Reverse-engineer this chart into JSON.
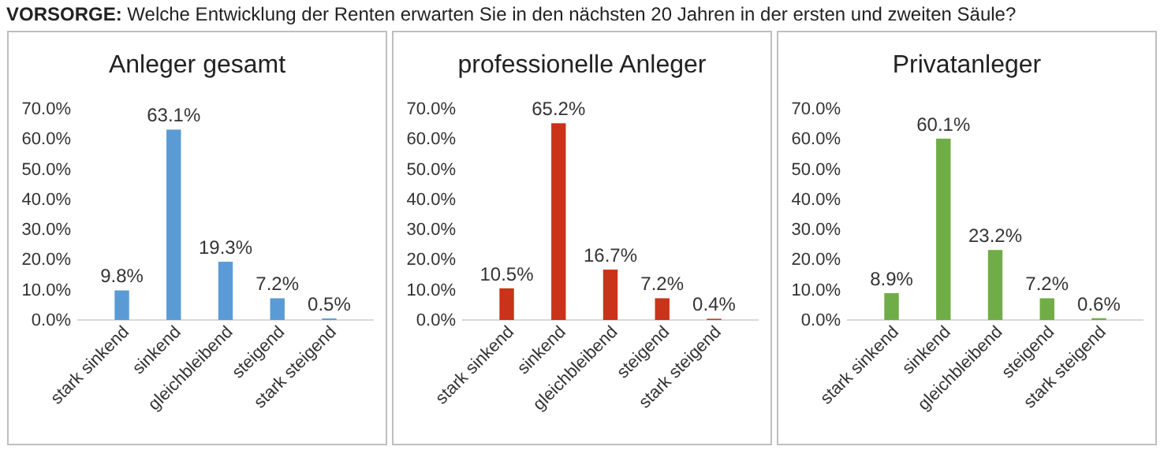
{
  "chart_data": [
    {
      "type": "other",
      "title": "VORSORGE: Welche Entwicklung der Renten erwarten Sie in den nächsten 20 Jahren in der ersten und zweiten Säule?"
    },
    {
      "type": "bar",
      "title": "Anleger gesamt",
      "categories": [
        "stark sinkend",
        "sinkend",
        "gleichbleibend",
        "steigend",
        "stark steigend"
      ],
      "values": [
        9.8,
        63.1,
        19.3,
        7.2,
        0.5
      ],
      "value_labels": [
        "9.8%",
        "63.1%",
        "19.3%",
        "7.2%",
        "0.5%"
      ],
      "color": "#5b9bd5",
      "ylim": [
        0,
        70
      ],
      "yticks": [
        {
          "value": 0,
          "label": "0.0%"
        },
        {
          "value": 10,
          "label": "10.0%"
        },
        {
          "value": 20,
          "label": "20.0%"
        },
        {
          "value": 30,
          "label": "30.0%"
        },
        {
          "value": 40,
          "label": "40.0%"
        },
        {
          "value": 50,
          "label": "50.0%"
        },
        {
          "value": 60,
          "label": "60.0%"
        },
        {
          "value": 70,
          "label": "70.0%"
        }
      ]
    },
    {
      "type": "bar",
      "title": "professionelle Anleger",
      "categories": [
        "stark sinkend",
        "sinkend",
        "gleichbleibend",
        "steigend",
        "stark steigend"
      ],
      "values": [
        10.5,
        65.2,
        16.7,
        7.2,
        0.4
      ],
      "value_labels": [
        "10.5%",
        "65.2%",
        "16.7%",
        "7.2%",
        "0.4%"
      ],
      "color": "#c9331a",
      "ylim": [
        0,
        70
      ],
      "yticks": [
        {
          "value": 0,
          "label": "0.0%"
        },
        {
          "value": 10,
          "label": "10.0%"
        },
        {
          "value": 20,
          "label": "20.0%"
        },
        {
          "value": 30,
          "label": "30.0%"
        },
        {
          "value": 40,
          "label": "40.0%"
        },
        {
          "value": 50,
          "label": "50.0%"
        },
        {
          "value": 60,
          "label": "60.0%"
        },
        {
          "value": 70,
          "label": "70.0%"
        }
      ]
    },
    {
      "type": "bar",
      "title": "Privatanleger",
      "categories": [
        "stark sinkend",
        "sinkend",
        "gleichbleibend",
        "steigend",
        "stark steigend"
      ],
      "values": [
        8.9,
        60.1,
        23.2,
        7.2,
        0.6
      ],
      "value_labels": [
        "8.9%",
        "60.1%",
        "23.2%",
        "7.2%",
        "0.6%"
      ],
      "color": "#70ad47",
      "ylim": [
        0,
        70
      ],
      "yticks": [
        {
          "value": 0,
          "label": "0.0%"
        },
        {
          "value": 10,
          "label": "10.0%"
        },
        {
          "value": 20,
          "label": "20.0%"
        },
        {
          "value": 30,
          "label": "30.0%"
        },
        {
          "value": 40,
          "label": "40.0%"
        },
        {
          "value": 50,
          "label": "50.0%"
        },
        {
          "value": 60,
          "label": "60.0%"
        },
        {
          "value": 70,
          "label": "70.0%"
        }
      ]
    }
  ]
}
